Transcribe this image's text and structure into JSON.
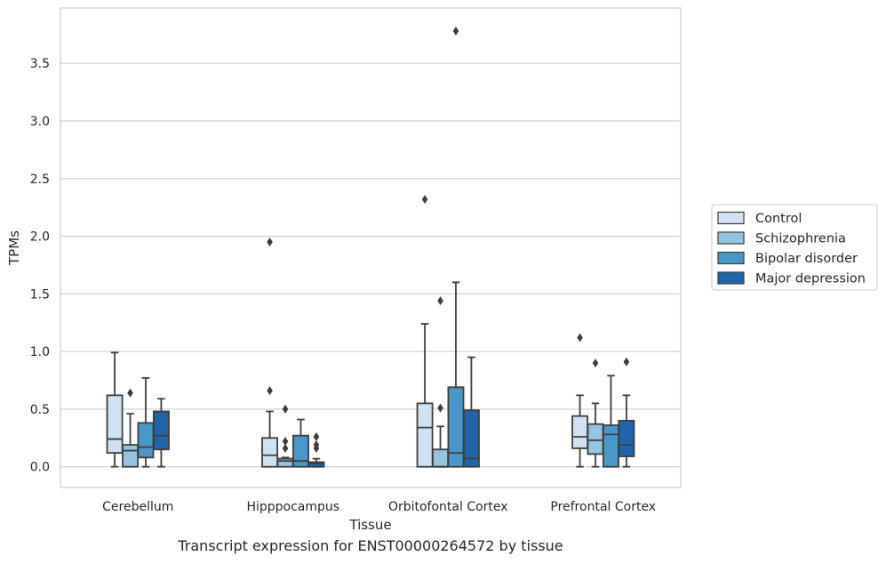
{
  "caption": "Transcript expression for ENST00000264572 by tissue",
  "chart_data": {
    "type": "box",
    "xlabel": "Tissue",
    "ylabel": "TPMs",
    "ylim": [
      -0.18,
      3.98
    ],
    "yticks": [
      "0.0",
      "0.5",
      "1.0",
      "1.5",
      "2.0",
      "2.5",
      "3.0",
      "3.5"
    ],
    "grid": "horizontal",
    "legend_position": "right",
    "categories": [
      "Cerebellum",
      "Hipppocampus",
      "Orbitofontal Cortex",
      "Prefrontal Cortex"
    ],
    "series": [
      {
        "name": "Control",
        "color": "#d0e1f2",
        "boxes": [
          {
            "whislo": 0.0,
            "q1": 0.12,
            "med": 0.24,
            "q3": 0.62,
            "whishi": 0.99,
            "fliers": []
          },
          {
            "whislo": 0.0,
            "q1": 0.0,
            "med": 0.1,
            "q3": 0.25,
            "whishi": 0.48,
            "fliers": [
              0.66,
              1.95
            ]
          },
          {
            "whislo": 0.0,
            "q1": 0.0,
            "med": 0.34,
            "q3": 0.55,
            "whishi": 1.24,
            "fliers": [
              2.32
            ]
          },
          {
            "whislo": 0.0,
            "q1": 0.16,
            "med": 0.26,
            "q3": 0.44,
            "whishi": 0.62,
            "fliers": [
              1.12
            ]
          }
        ]
      },
      {
        "name": "Schizophrenia",
        "color": "#94c4df",
        "boxes": [
          {
            "whislo": 0.0,
            "q1": 0.0,
            "med": 0.14,
            "q3": 0.19,
            "whishi": 0.46,
            "fliers": [
              0.64
            ]
          },
          {
            "whislo": 0.0,
            "q1": 0.0,
            "med": 0.05,
            "q3": 0.07,
            "whishi": 0.08,
            "fliers": [
              0.16,
              0.22,
              0.5
            ]
          },
          {
            "whislo": 0.0,
            "q1": 0.0,
            "med": 0.0,
            "q3": 0.15,
            "whishi": 0.35,
            "fliers": [
              0.51,
              1.44
            ]
          },
          {
            "whislo": 0.0,
            "q1": 0.11,
            "med": 0.23,
            "q3": 0.37,
            "whishi": 0.55,
            "fliers": [
              0.9
            ]
          }
        ]
      },
      {
        "name": "Bipolar disorder",
        "color": "#4a98c9",
        "boxes": [
          {
            "whislo": 0.0,
            "q1": 0.08,
            "med": 0.17,
            "q3": 0.38,
            "whishi": 0.77,
            "fliers": []
          },
          {
            "whislo": 0.0,
            "q1": 0.0,
            "med": 0.05,
            "q3": 0.27,
            "whishi": 0.41,
            "fliers": []
          },
          {
            "whislo": 0.0,
            "q1": 0.0,
            "med": 0.12,
            "q3": 0.69,
            "whishi": 1.6,
            "fliers": [
              3.78
            ]
          },
          {
            "whislo": 0.0,
            "q1": 0.0,
            "med": 0.28,
            "q3": 0.36,
            "whishi": 0.79,
            "fliers": []
          }
        ]
      },
      {
        "name": "Major depression",
        "color": "#2164ab",
        "boxes": [
          {
            "whislo": 0.0,
            "q1": 0.15,
            "med": 0.27,
            "q3": 0.48,
            "whishi": 0.59,
            "fliers": []
          },
          {
            "whislo": 0.0,
            "q1": 0.0,
            "med": 0.03,
            "q3": 0.04,
            "whishi": 0.07,
            "fliers": [
              0.16,
              0.19,
              0.26
            ]
          },
          {
            "whislo": 0.0,
            "q1": 0.0,
            "med": 0.07,
            "q3": 0.49,
            "whishi": 0.95,
            "fliers": []
          },
          {
            "whislo": 0.0,
            "q1": 0.09,
            "med": 0.19,
            "q3": 0.4,
            "whishi": 0.62,
            "fliers": [
              0.91
            ]
          }
        ]
      }
    ]
  }
}
